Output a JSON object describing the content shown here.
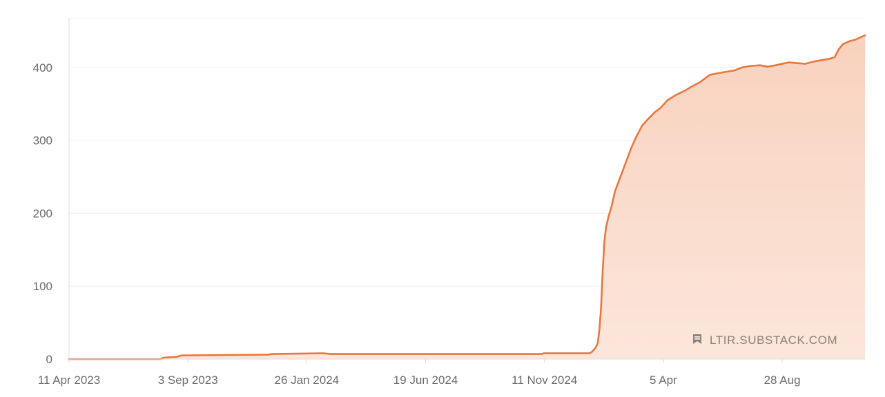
{
  "chart_data": {
    "type": "area",
    "title": "",
    "xlabel": "",
    "ylabel": "",
    "x_tick_labels": [
      "11 Apr 2023",
      "3 Sep 2023",
      "26 Jan 2024",
      "19 Jun 2024",
      "11 Nov 2024",
      "5 Apr",
      "28 Aug"
    ],
    "y_ticks": [
      0,
      100,
      200,
      300,
      400
    ],
    "y_tick_labels": [
      "0",
      "100",
      "200",
      "300",
      "400"
    ],
    "xlim": [
      "2023-04-11",
      "2025-12-07"
    ],
    "ylim": [
      0,
      467
    ],
    "grid": true,
    "legend": "none",
    "colors": {
      "line": "#e8773d",
      "fill": "#f9d6c4",
      "grid": "#efefef",
      "axis": "#dcdcdc"
    },
    "series": [
      {
        "x": [
          "2023-04-11",
          "2023-08-01",
          "2023-08-04",
          "2023-08-20",
          "2023-08-26",
          "2023-12-10",
          "2023-12-14",
          "2024-02-15",
          "2024-02-24",
          "2024-11-08",
          "2024-11-10",
          "2025-01-05",
          "2025-01-08",
          "2025-01-12",
          "2025-01-15",
          "2025-01-17",
          "2025-01-19",
          "2025-01-21",
          "2025-01-23",
          "2025-01-25",
          "2025-01-26",
          "2025-01-27",
          "2025-01-28",
          "2025-02-01",
          "2025-02-05",
          "2025-02-10",
          "2025-02-15",
          "2025-02-20",
          "2025-02-25",
          "2025-03-03",
          "2025-03-10",
          "2025-03-18",
          "2025-03-25",
          "2025-04-02",
          "2025-04-10",
          "2025-04-20",
          "2025-05-01",
          "2025-05-10",
          "2025-05-20",
          "2025-06-01",
          "2025-06-10",
          "2025-06-20",
          "2025-07-01",
          "2025-07-10",
          "2025-07-20",
          "2025-08-01",
          "2025-08-10",
          "2025-08-20",
          "2025-08-28",
          "2025-09-05",
          "2025-09-15",
          "2025-09-25",
          "2025-10-05",
          "2025-10-15",
          "2025-10-25",
          "2025-10-31",
          "2025-11-05",
          "2025-11-10",
          "2025-11-18",
          "2025-11-25",
          "2025-12-07"
        ],
        "y": [
          0,
          0,
          2,
          3,
          5,
          6,
          7,
          8,
          7,
          7,
          8,
          8,
          10,
          15,
          22,
          40,
          70,
          120,
          160,
          180,
          185,
          190,
          195,
          210,
          230,
          245,
          260,
          275,
          290,
          305,
          320,
          330,
          338,
          345,
          355,
          362,
          368,
          374,
          380,
          390,
          392,
          394,
          396,
          400,
          402,
          403,
          401,
          403,
          405,
          407,
          406,
          405,
          408,
          410,
          412,
          414,
          425,
          432,
          436,
          438,
          444
        ]
      }
    ]
  },
  "watermark": {
    "icon": "bookmark-icon",
    "text": "LTIR.SUBSTACK.COM"
  }
}
